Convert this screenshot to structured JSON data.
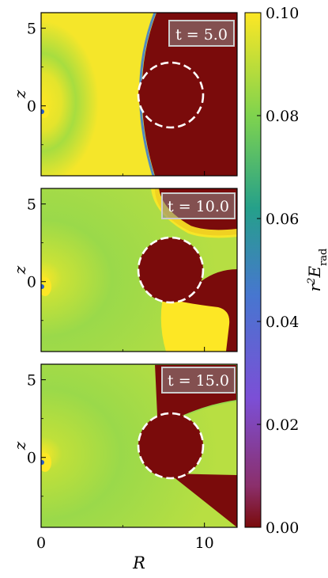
{
  "chart_data": {
    "type": "heatmap",
    "xlabel": "R",
    "ylabel": "z",
    "xlim": [
      0,
      12
    ],
    "ylim": [
      -4.5,
      6
    ],
    "x_ticks": [
      0,
      10
    ],
    "y_ticks": [
      0,
      5
    ],
    "panels": [
      {
        "time_label": "t = 5.0",
        "time": 5.0
      },
      {
        "time_label": "t = 10.0",
        "time": 10.0
      },
      {
        "time_label": "t = 15.0",
        "time": 15.0
      }
    ],
    "colorbar": {
      "label": "r²E_rad",
      "range": [
        0.0,
        0.1
      ],
      "ticks": [
        "0.00",
        "0.02",
        "0.04",
        "0.06",
        "0.08",
        "0.10"
      ],
      "colors": [
        "#7a0b0b",
        "#8b2f6b",
        "#7c4fd6",
        "#4776d0",
        "#25a08a",
        "#7fd34e",
        "#fde725"
      ]
    },
    "obstacle_circle": {
      "center_R": 8.0,
      "center_z": 1.0,
      "radius": 2.0,
      "style": "dashed-white"
    }
  }
}
